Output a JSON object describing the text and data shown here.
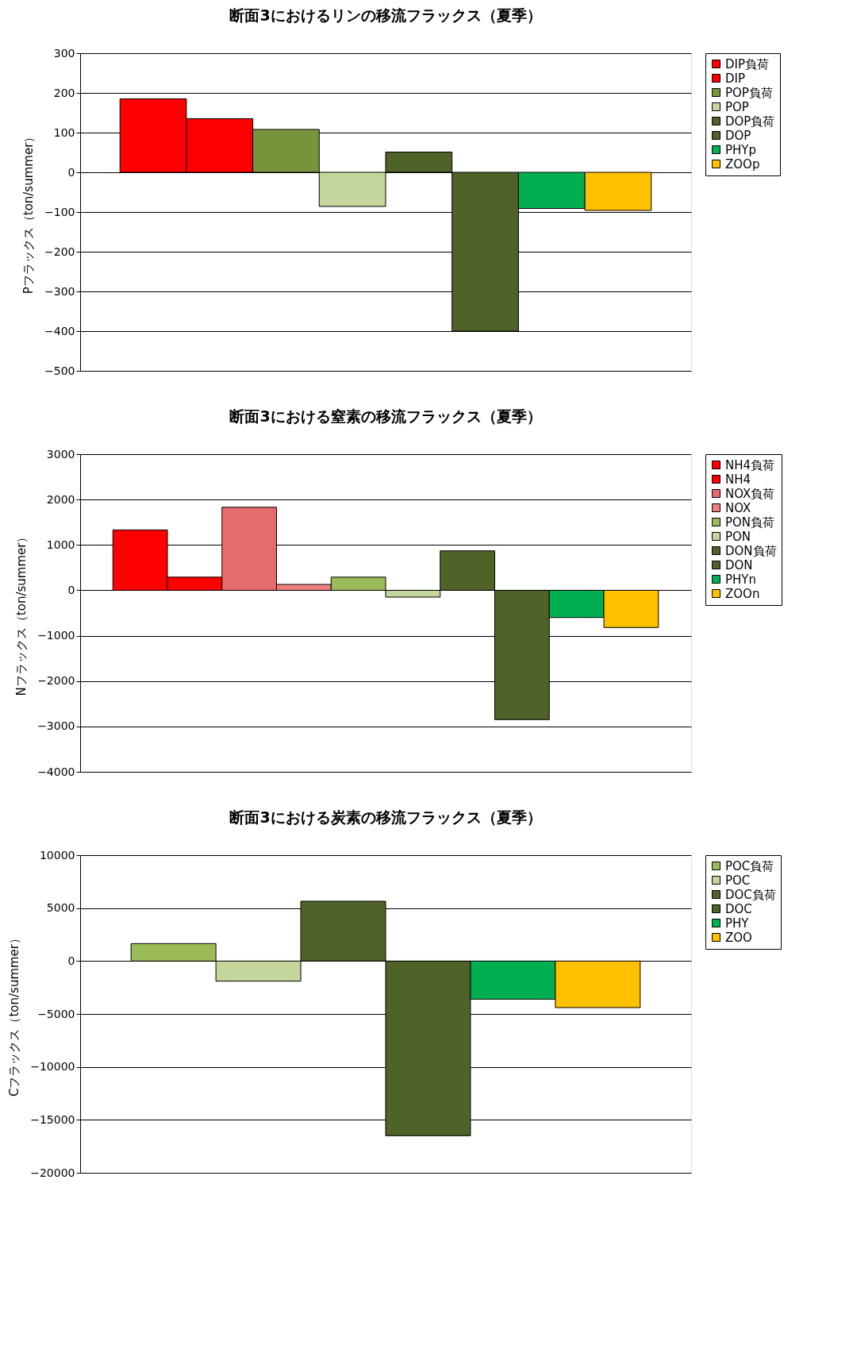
{
  "chart_data": [
    {
      "type": "bar",
      "title": "断面3におけるリンの移流フラックス（夏季）",
      "ylabel": "Pフラックス（ton/summer）",
      "categories": [
        null
      ],
      "ylim": [
        -500,
        300
      ],
      "yticks": [
        -500,
        -400,
        -300,
        -200,
        -100,
        0,
        100,
        200,
        300
      ],
      "grid": "y",
      "legend": "right",
      "tick_labels": "y",
      "series": [
        {
          "name": "DIP負荷",
          "color": "#ff0000",
          "values": [
            185
          ]
        },
        {
          "name": "DIP",
          "color": "#ff0000",
          "values": [
            135
          ]
        },
        {
          "name": "POP負荷",
          "color": "#77933c",
          "values": [
            108
          ]
        },
        {
          "name": "POP",
          "color": "#c3d69b",
          "values": [
            -86
          ]
        },
        {
          "name": "DOP負荷",
          "color": "#4f6228",
          "values": [
            51
          ]
        },
        {
          "name": "DOP",
          "color": "#4f6228",
          "values": [
            -400
          ]
        },
        {
          "name": "PHYp",
          "color": "#00b050",
          "values": [
            -91
          ]
        },
        {
          "name": "ZOOp",
          "color": "#ffc000",
          "values": [
            -96
          ]
        }
      ]
    },
    {
      "type": "bar",
      "title": "断面3における窒素の移流フラックス（夏季）",
      "ylabel": "Nフラックス（ton/summer）",
      "categories": [
        null
      ],
      "ylim": [
        -4000,
        3000
      ],
      "yticks": [
        -4000,
        -3000,
        -2000,
        -1000,
        0,
        1000,
        2000,
        3000
      ],
      "grid": "y",
      "legend": "right",
      "tick_labels": "y",
      "series": [
        {
          "name": "NH4負荷",
          "color": "#ff0000",
          "values": [
            1330
          ]
        },
        {
          "name": "NH4",
          "color": "#ff0000",
          "values": [
            290
          ]
        },
        {
          "name": "NOX負荷",
          "color": "#e46c6c",
          "values": [
            1830
          ]
        },
        {
          "name": "NOX",
          "color": "#f08080",
          "values": [
            130
          ]
        },
        {
          "name": "PON負荷",
          "color": "#9bbb59",
          "values": [
            290
          ]
        },
        {
          "name": "PON",
          "color": "#c3d69b",
          "values": [
            -150
          ]
        },
        {
          "name": "DON負荷",
          "color": "#4f6228",
          "values": [
            870
          ]
        },
        {
          "name": "DON",
          "color": "#4f6228",
          "values": [
            -2850
          ]
        },
        {
          "name": "PHYn",
          "color": "#00b050",
          "values": [
            -600
          ]
        },
        {
          "name": "ZOOn",
          "color": "#ffc000",
          "values": [
            -820
          ]
        }
      ]
    },
    {
      "type": "bar",
      "title": "断面3における炭素の移流フラックス（夏季）",
      "ylabel": "Cフラックス（ton/summer）",
      "categories": [
        null
      ],
      "ylim": [
        -20000,
        10000
      ],
      "yticks": [
        -20000,
        -15000,
        -10000,
        -5000,
        0,
        5000,
        10000
      ],
      "grid": "y",
      "legend": "right",
      "tick_labels": "y",
      "series": [
        {
          "name": "POC負荷",
          "color": "#9bbb59",
          "values": [
            1650
          ]
        },
        {
          "name": "POC",
          "color": "#c3d69b",
          "values": [
            -1900
          ]
        },
        {
          "name": "DOC負荷",
          "color": "#4f6228",
          "values": [
            5650
          ]
        },
        {
          "name": "DOC",
          "color": "#4f6228",
          "values": [
            -16500
          ]
        },
        {
          "name": "PHY",
          "color": "#00b050",
          "values": [
            -3600
          ]
        },
        {
          "name": "ZOO",
          "color": "#ffc000",
          "values": [
            -4400
          ]
        }
      ]
    }
  ]
}
